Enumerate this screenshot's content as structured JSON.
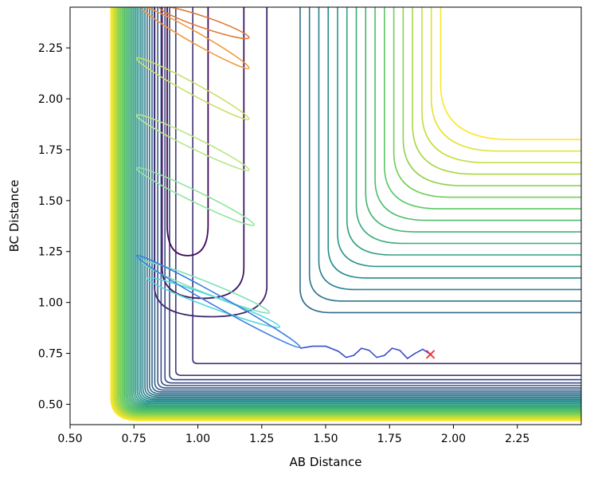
{
  "chart_data": {
    "type": "contour",
    "title": "",
    "xlabel": "AB Distance",
    "ylabel": "BC Distance",
    "xlim": [
      0.5,
      2.5
    ],
    "ylim": [
      0.4,
      2.45
    ],
    "xticks": [
      "0.50",
      "0.75",
      "1.00",
      "1.25",
      "1.50",
      "1.75",
      "2.00",
      "2.25"
    ],
    "yticks": [
      "0.50",
      "0.75",
      "1.00",
      "1.25",
      "1.50",
      "1.75",
      "2.00",
      "2.25"
    ],
    "grid": false,
    "legend": "none",
    "colormap": [
      "#440154",
      "#3b528b",
      "#21918c",
      "#5ec962",
      "#fde725"
    ],
    "trajectory_color": "#3a4ccf",
    "end_marker": {
      "x": 1.91,
      "y": 0.745,
      "marker": "x",
      "color": "#e8343a"
    },
    "trajectory": [
      [
        1.4,
        0.775
      ],
      [
        1.45,
        0.785
      ],
      [
        1.5,
        0.785
      ],
      [
        1.55,
        0.76
      ],
      [
        1.58,
        0.73
      ],
      [
        1.61,
        0.74
      ],
      [
        1.64,
        0.775
      ],
      [
        1.67,
        0.765
      ],
      [
        1.7,
        0.73
      ],
      [
        1.73,
        0.74
      ],
      [
        1.76,
        0.775
      ],
      [
        1.79,
        0.765
      ],
      [
        1.82,
        0.725
      ],
      [
        1.85,
        0.75
      ],
      [
        1.88,
        0.77
      ],
      [
        1.91,
        0.745
      ]
    ],
    "oscillation_loops": [
      {
        "x": [
          0.85,
          1.2
        ],
        "y": [
          2.3,
          2.45
        ],
        "color": "#e07b39"
      },
      {
        "x": [
          0.78,
          1.2
        ],
        "y": [
          2.15,
          2.45
        ],
        "color": "#f09a3e"
      },
      {
        "x": [
          0.76,
          1.2
        ],
        "y": [
          1.9,
          2.2
        ],
        "color": "#c8e06a"
      },
      {
        "x": [
          0.76,
          1.2
        ],
        "y": [
          1.65,
          1.92
        ],
        "color": "#b8e88a"
      },
      {
        "x": [
          0.76,
          1.22
        ],
        "y": [
          1.38,
          1.66
        ],
        "color": "#8ee69a"
      },
      {
        "x": [
          0.78,
          1.28
        ],
        "y": [
          0.95,
          1.2
        ],
        "color": "#7de0b8"
      },
      {
        "x": [
          0.8,
          1.32
        ],
        "y": [
          0.88,
          1.12
        ],
        "color": "#4fd6e0"
      },
      {
        "x": [
          0.76,
          1.4
        ],
        "y": [
          0.78,
          1.23
        ],
        "color": "#3a7ee0"
      }
    ]
  }
}
